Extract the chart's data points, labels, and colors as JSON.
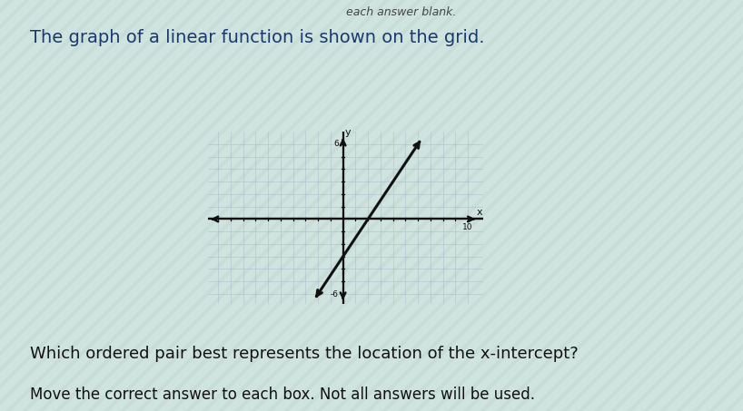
{
  "title": "The graph of a linear function is shown on the grid.",
  "subtitle_top": "each answer blank.",
  "question": "Which ordered pair best represents the location of the x-intercept?",
  "instruction": "Move the correct answer to each box. Not all answers will be used.",
  "bg_color": "#c8ddd8",
  "stripe_color": "#d8ebe6",
  "graph_bg": "#f0f4f0",
  "graph_border": "#888888",
  "xlim": [
    -10,
    10
  ],
  "ylim": [
    -6,
    6
  ],
  "grid_minor_color": "#8899bb",
  "grid_minor_alpha": 0.45,
  "grid_minor_lw": 0.4,
  "axis_color": "#111111",
  "axis_lw": 1.6,
  "line_x1": -2,
  "line_y1": -6,
  "line_x2": 6,
  "line_y2": 6,
  "line_color": "#111111",
  "line_width": 2.2,
  "title_color": "#1a3a6e",
  "title_fontsize": 14,
  "question_fontsize": 13,
  "instruction_fontsize": 12,
  "text_color": "#111111"
}
